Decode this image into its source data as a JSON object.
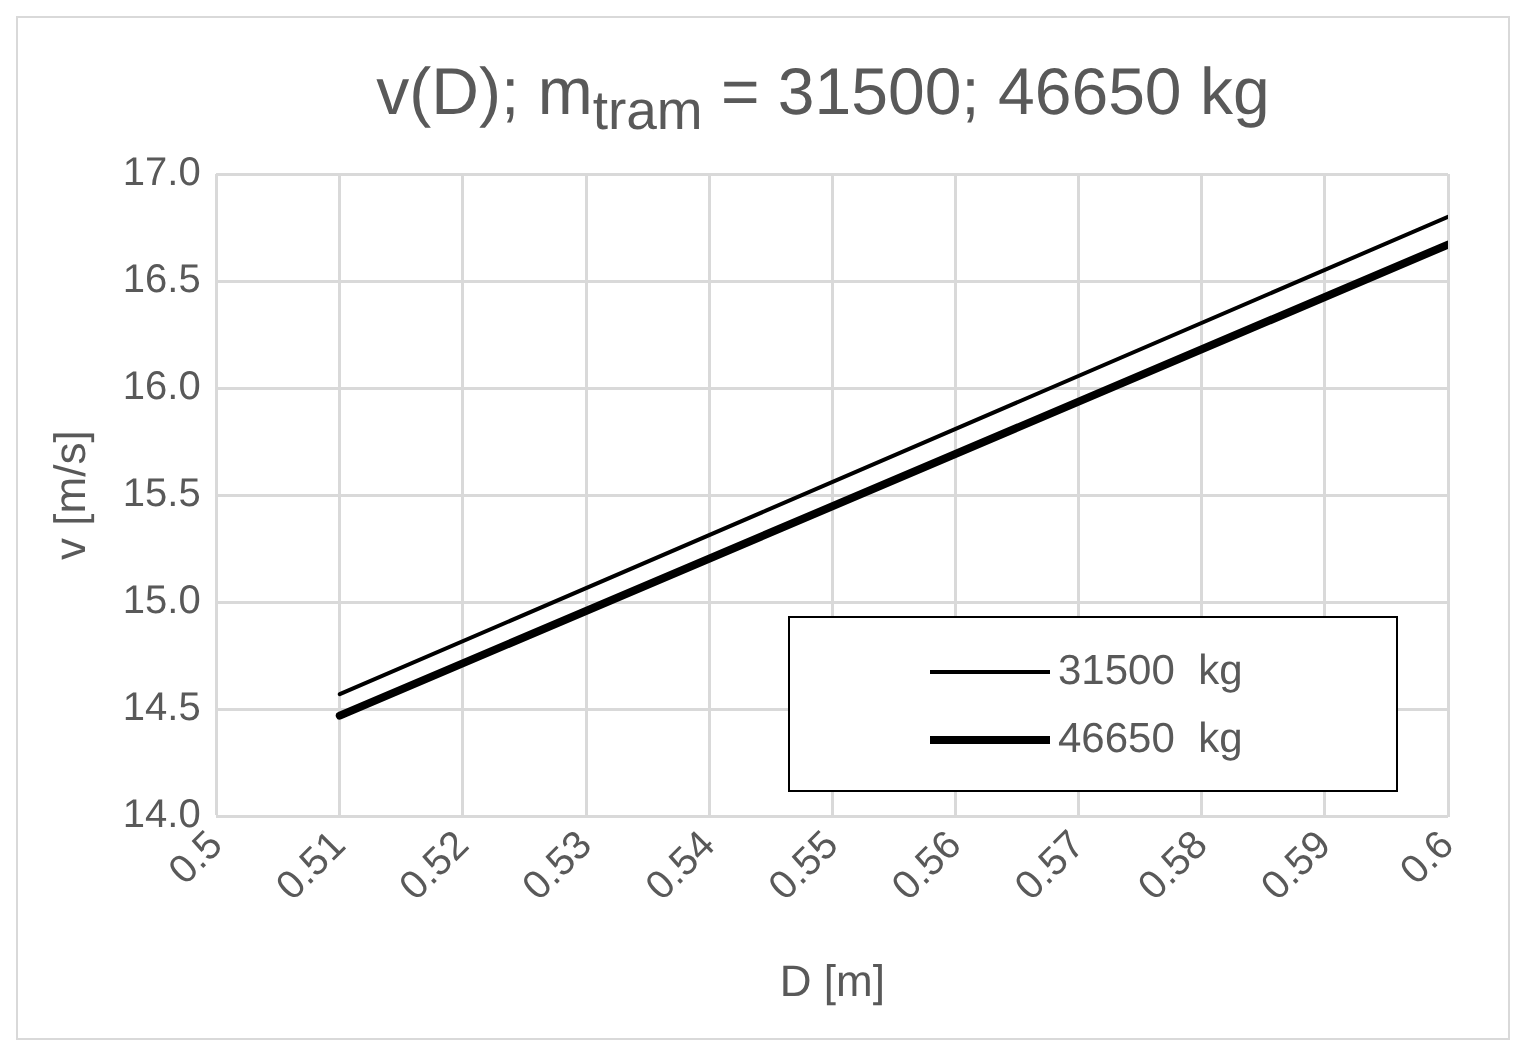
{
  "chart_data": {
    "type": "line",
    "title": "v(D); m$_{tram}$ = 31500; 46650 kg",
    "xlabel": "D [m]",
    "ylabel": "v [m/s]",
    "x": [
      0.51,
      0.6
    ],
    "series": [
      {
        "name": "31500  kg",
        "color": "#000000",
        "values": [
          14.57,
          16.8
        ]
      },
      {
        "name": "46650  kg",
        "color": "#000000",
        "values": [
          14.47,
          16.67
        ]
      }
    ],
    "xlim": [
      0.5,
      0.6
    ],
    "xticks": [
      0.5,
      0.51,
      0.52,
      0.53,
      0.54,
      0.55,
      0.56,
      0.57,
      0.58,
      0.59,
      0.6
    ],
    "ylim": [
      14,
      17
    ],
    "yticks": [
      {
        "value": 14,
        "label": "14.0"
      },
      {
        "value": 14.5,
        "label": "14.5"
      },
      {
        "value": 15,
        "label": "15.0"
      },
      {
        "value": 15.5,
        "label": "15.5"
      },
      {
        "value": 16,
        "label": "16.0"
      },
      {
        "value": 16.5,
        "label": "16.5"
      },
      {
        "value": 17,
        "label": "17.0"
      }
    ],
    "grid": true,
    "legend": "bottom right",
    "marker": "none",
    "line_style": "solid"
  }
}
